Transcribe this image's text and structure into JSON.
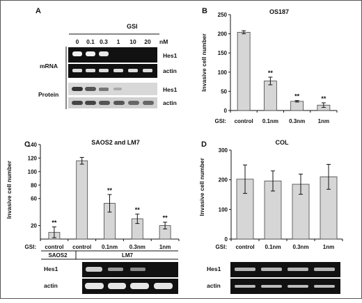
{
  "panels": {
    "A": {
      "letter": "A",
      "gsi_label": "GSI",
      "unit": "nM",
      "doses": [
        "0",
        "0.1",
        "0.3",
        "1",
        "10",
        "20"
      ],
      "mrna_label": "mRNA",
      "protein_label": "Protein",
      "rows": [
        "Hes1",
        "actin",
        "Hes1",
        "actin"
      ]
    },
    "B": {
      "letter": "B"
    },
    "C": {
      "letter": "C",
      "sublabels": {
        "left": "SAOS2",
        "right": "LM7"
      },
      "blot_rows": [
        "Hes1",
        "actin"
      ]
    },
    "D": {
      "letter": "D",
      "blot_rows": [
        "Hes1",
        "actin"
      ]
    }
  },
  "chart_data": [
    {
      "type": "bar",
      "panel": "B",
      "title": "OS187",
      "categories": [
        "control",
        "0.1nm",
        "0.3nm",
        "1nm"
      ],
      "values": [
        204,
        77,
        24,
        14
      ],
      "errors": [
        4,
        10,
        2,
        6
      ],
      "significance": [
        "",
        "**",
        "**",
        "**"
      ],
      "ylabel": "Invasive cell number",
      "xlabel": "GSI:",
      "ylim": [
        0,
        250
      ],
      "yticks": [
        0,
        50,
        100,
        150,
        200,
        250
      ],
      "grid": false
    },
    {
      "type": "bar",
      "panel": "C",
      "title": "SAOS2 and LM7",
      "categories": [
        "control",
        "control",
        "0.1nm",
        "0.3nm",
        "1nm"
      ],
      "values": [
        10,
        116,
        53,
        30,
        20
      ],
      "errors": [
        8,
        5,
        13,
        7,
        5
      ],
      "significance": [
        "**",
        "",
        "**",
        "**",
        "**"
      ],
      "ylabel": "Invasive cell number",
      "xlabel": "GSI:",
      "ylim": [
        0,
        140
      ],
      "yticks": [
        20,
        60,
        80,
        100,
        120,
        140
      ],
      "grid": false
    },
    {
      "type": "bar",
      "panel": "D",
      "title": "COL",
      "categories": [
        "control",
        "0.1nm",
        "0.3nm",
        "1nm"
      ],
      "values": [
        202,
        196,
        185,
        210
      ],
      "errors": [
        48,
        34,
        34,
        42
      ],
      "significance": [
        "",
        "",
        "",
        ""
      ],
      "ylabel": "Invasive cell number",
      "xlabel": "GSI:",
      "ylim": [
        0,
        300
      ],
      "yticks": [
        0,
        100,
        200,
        300
      ],
      "grid": false
    }
  ]
}
